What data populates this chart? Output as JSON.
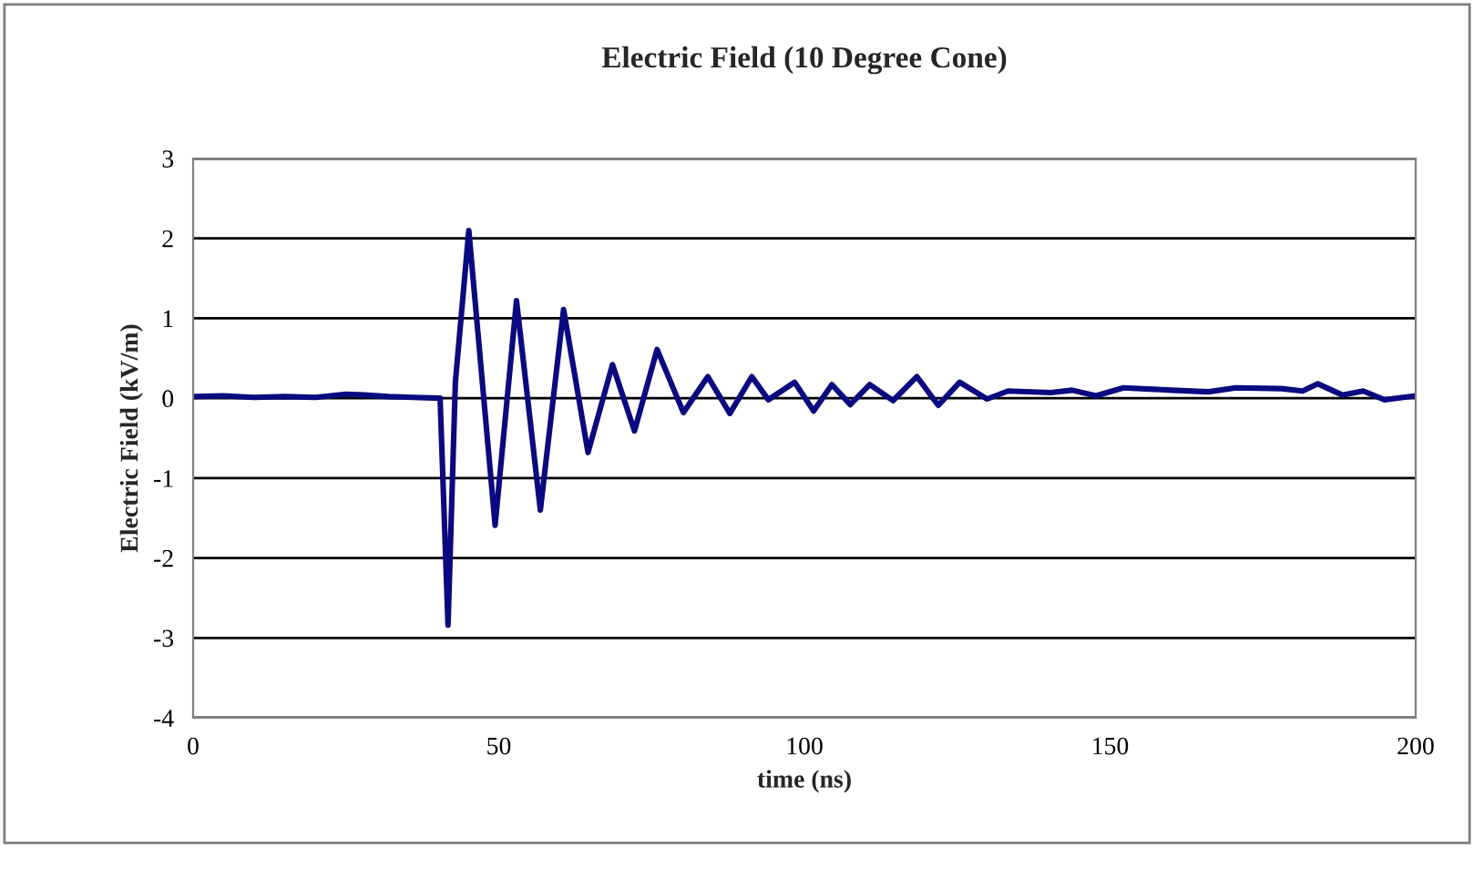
{
  "chart_data": {
    "type": "line",
    "title": "Electric Field (10 Degree Cone)",
    "xlabel": "time (ns)",
    "ylabel": "Electric Field (kV/m)",
    "xlim": [
      0,
      200
    ],
    "xticks": [
      0,
      50,
      100,
      150,
      200
    ],
    "ylim": [
      -4,
      3
    ],
    "yticks": [
      -4,
      -3,
      -2,
      -1,
      0,
      1,
      2,
      3
    ],
    "grid": "y",
    "legend": false,
    "marker": "none",
    "line_style": "solid",
    "series": [
      {
        "color": "#0a0a80",
        "x": [
          0,
          5,
          10,
          15,
          20,
          25,
          28,
          32,
          36,
          40.4,
          41.7,
          42.9,
          45.1,
          49.4,
          52.9,
          56.8,
          60.6,
          64.6,
          68.6,
          72.2,
          75.9,
          80.2,
          84.2,
          87.8,
          91.4,
          94.1,
          98.4,
          101.5,
          104.5,
          107.5,
          110.7,
          114.5,
          118.4,
          121.9,
          125.4,
          129.9,
          133.3,
          140.3,
          143.8,
          147.7,
          152.2,
          160.1,
          166.1,
          170.6,
          178.0,
          181.5,
          184.0,
          188.0,
          191.4,
          194.9,
          200
        ],
        "values": [
          0.02,
          0.03,
          0.01,
          0.02,
          0.01,
          0.05,
          0.04,
          0.02,
          0.01,
          0.0,
          -2.84,
          0.2,
          2.1,
          -1.59,
          1.22,
          -1.4,
          1.11,
          -0.68,
          0.42,
          -0.41,
          0.61,
          -0.18,
          0.27,
          -0.19,
          0.27,
          -0.02,
          0.2,
          -0.16,
          0.17,
          -0.08,
          0.17,
          -0.03,
          0.27,
          -0.09,
          0.2,
          -0.01,
          0.09,
          0.07,
          0.1,
          0.03,
          0.13,
          0.1,
          0.08,
          0.13,
          0.12,
          0.09,
          0.18,
          0.04,
          0.09,
          -0.02,
          0.03
        ]
      }
    ]
  }
}
